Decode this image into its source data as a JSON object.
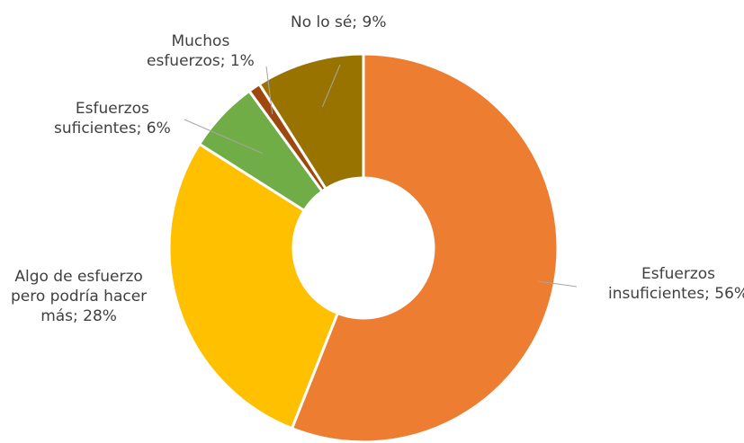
{
  "chart_data": {
    "type": "pie",
    "donut": true,
    "start": "top, clockwise",
    "slices": [
      {
        "label": "Esfuerzos insuficientes",
        "value": 56,
        "label_lines": [
          "Esfuerzos",
          "insuficientes; 56%"
        ],
        "color": "#ED7D31"
      },
      {
        "label": "Algo de esfuerzo pero podría hacer más",
        "value": 28,
        "label_lines": [
          "Algo de esfuerzo",
          "pero podría hacer",
          "más; 28%"
        ],
        "color": "#FFC000"
      },
      {
        "label": "Esfuerzos suficientes",
        "value": 6,
        "label_lines": [
          "Esfuerzos",
          "suficientes; 6%"
        ],
        "color": "#70AD47"
      },
      {
        "label": "Muchos esfuerzos",
        "value": 1,
        "label_lines": [
          "Muchos",
          "esfuerzos; 1%"
        ],
        "color": "#9E480E"
      },
      {
        "label": "No lo sé",
        "value": 9,
        "label_lines": [
          "No lo sé; 9%"
        ],
        "color": "#997300"
      }
    ],
    "separator_color": "#ffffff",
    "leader_line_color": "#A6A6A6",
    "legend": "none"
  }
}
